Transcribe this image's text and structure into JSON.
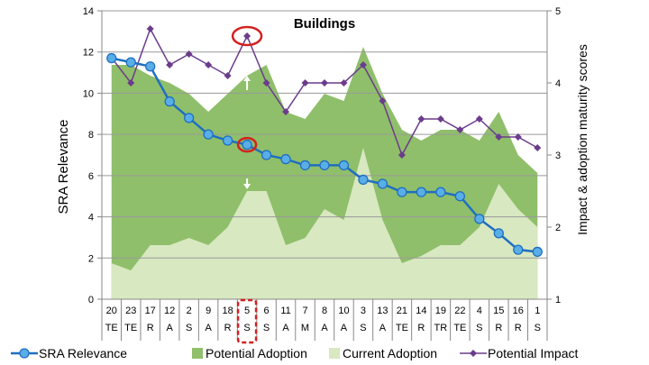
{
  "chart_data": {
    "type": "line",
    "title": "Buildings",
    "ylabel": "SRA Relevance",
    "y2label": "Impact & adoption maturity scores",
    "ylim": [
      0,
      14
    ],
    "y2lim": [
      1,
      5
    ],
    "yticks": [
      "0",
      "2",
      "4",
      "6",
      "8",
      "10",
      "12",
      "14"
    ],
    "y2ticks": [
      "1",
      "2",
      "3",
      "4",
      "5"
    ],
    "grid": true,
    "legend_position": "bottom",
    "categories": [
      "20",
      "23",
      "17",
      "12",
      "2",
      "9",
      "18",
      "5",
      "6",
      "11",
      "7",
      "8",
      "10",
      "3",
      "13",
      "21",
      "14",
      "19",
      "22",
      "4",
      "15",
      "16",
      "1"
    ],
    "category_codes": [
      "TE",
      "TE",
      "R",
      "A",
      "S",
      "A",
      "R",
      "S",
      "S",
      "A",
      "M",
      "A",
      "A",
      "S",
      "A",
      "TE",
      "R",
      "TR",
      "TE",
      "S",
      "R",
      "R",
      "S"
    ],
    "series": [
      {
        "name": "SRA Relevance",
        "axis": "left",
        "style": "line-circle",
        "color": "#1f6fc0",
        "fill": "#5aaee6",
        "values": [
          11.7,
          11.5,
          11.3,
          9.6,
          8.8,
          8.0,
          7.7,
          7.5,
          7.0,
          6.8,
          6.5,
          6.5,
          6.5,
          5.8,
          5.6,
          5.2,
          5.2,
          5.2,
          5.0,
          3.9,
          3.2,
          2.4,
          2.3
        ]
      },
      {
        "name": "Potential Adoption",
        "axis": "right",
        "style": "area",
        "color": "#8fbf6a",
        "values": [
          4.25,
          4.25,
          4.1,
          4.0,
          3.85,
          3.6,
          3.85,
          4.1,
          4.25,
          3.6,
          3.5,
          3.85,
          3.75,
          4.5,
          3.85,
          3.35,
          3.2,
          3.35,
          3.35,
          3.2,
          3.6,
          3.0,
          2.75
        ]
      },
      {
        "name": "Current Adoption",
        "axis": "right",
        "style": "area",
        "color": "#d8e8c1",
        "values": [
          1.5,
          1.4,
          1.75,
          1.75,
          1.85,
          1.75,
          2.0,
          2.5,
          2.5,
          1.75,
          1.85,
          2.25,
          2.1,
          3.1,
          2.1,
          1.5,
          1.6,
          1.75,
          1.75,
          2.0,
          2.6,
          2.25,
          2.0
        ]
      },
      {
        "name": "Potential Impact",
        "axis": "right",
        "style": "line-diamond",
        "color": "#6b3c8c",
        "values": [
          4.35,
          4.0,
          4.75,
          4.25,
          4.4,
          4.25,
          4.1,
          4.65,
          4.0,
          3.6,
          4.0,
          4.0,
          4.0,
          4.25,
          3.75,
          3.0,
          3.5,
          3.5,
          3.35,
          3.5,
          3.25,
          3.25,
          3.1
        ]
      }
    ],
    "annotations": [
      {
        "type": "ellipse",
        "series": "Potential Impact",
        "category_index": 7,
        "color": "#d42020"
      },
      {
        "type": "ellipse",
        "series": "SRA Relevance",
        "category_index": 7,
        "color": "#d42020"
      },
      {
        "type": "dashed-box",
        "category_index": 7,
        "color": "#d42020"
      },
      {
        "type": "arrow",
        "direction": "up",
        "category_index": 7
      },
      {
        "type": "arrow",
        "direction": "down",
        "category_index": 7
      }
    ]
  }
}
